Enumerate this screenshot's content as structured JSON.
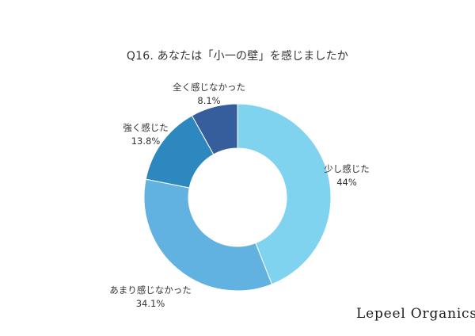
{
  "chart_data": {
    "type": "pie",
    "donut": true,
    "title": "Q16. あなたは「小一の壁」を感じましたか",
    "categories": [
      "少し感じた",
      "あまり感じなかった",
      "強く感じた",
      "全く感じなかった"
    ],
    "values": [
      44,
      34.1,
      13.8,
      8.1
    ],
    "value_labels": [
      "44%",
      "34.1%",
      "13.8%",
      "8.1%"
    ],
    "colors": [
      "#7fd3ef",
      "#61b2e0",
      "#2e88c0",
      "#365d9c"
    ],
    "start": "12 o'clock",
    "direction": "clockwise"
  },
  "brand": {
    "text": "Lepeel Organics"
  }
}
